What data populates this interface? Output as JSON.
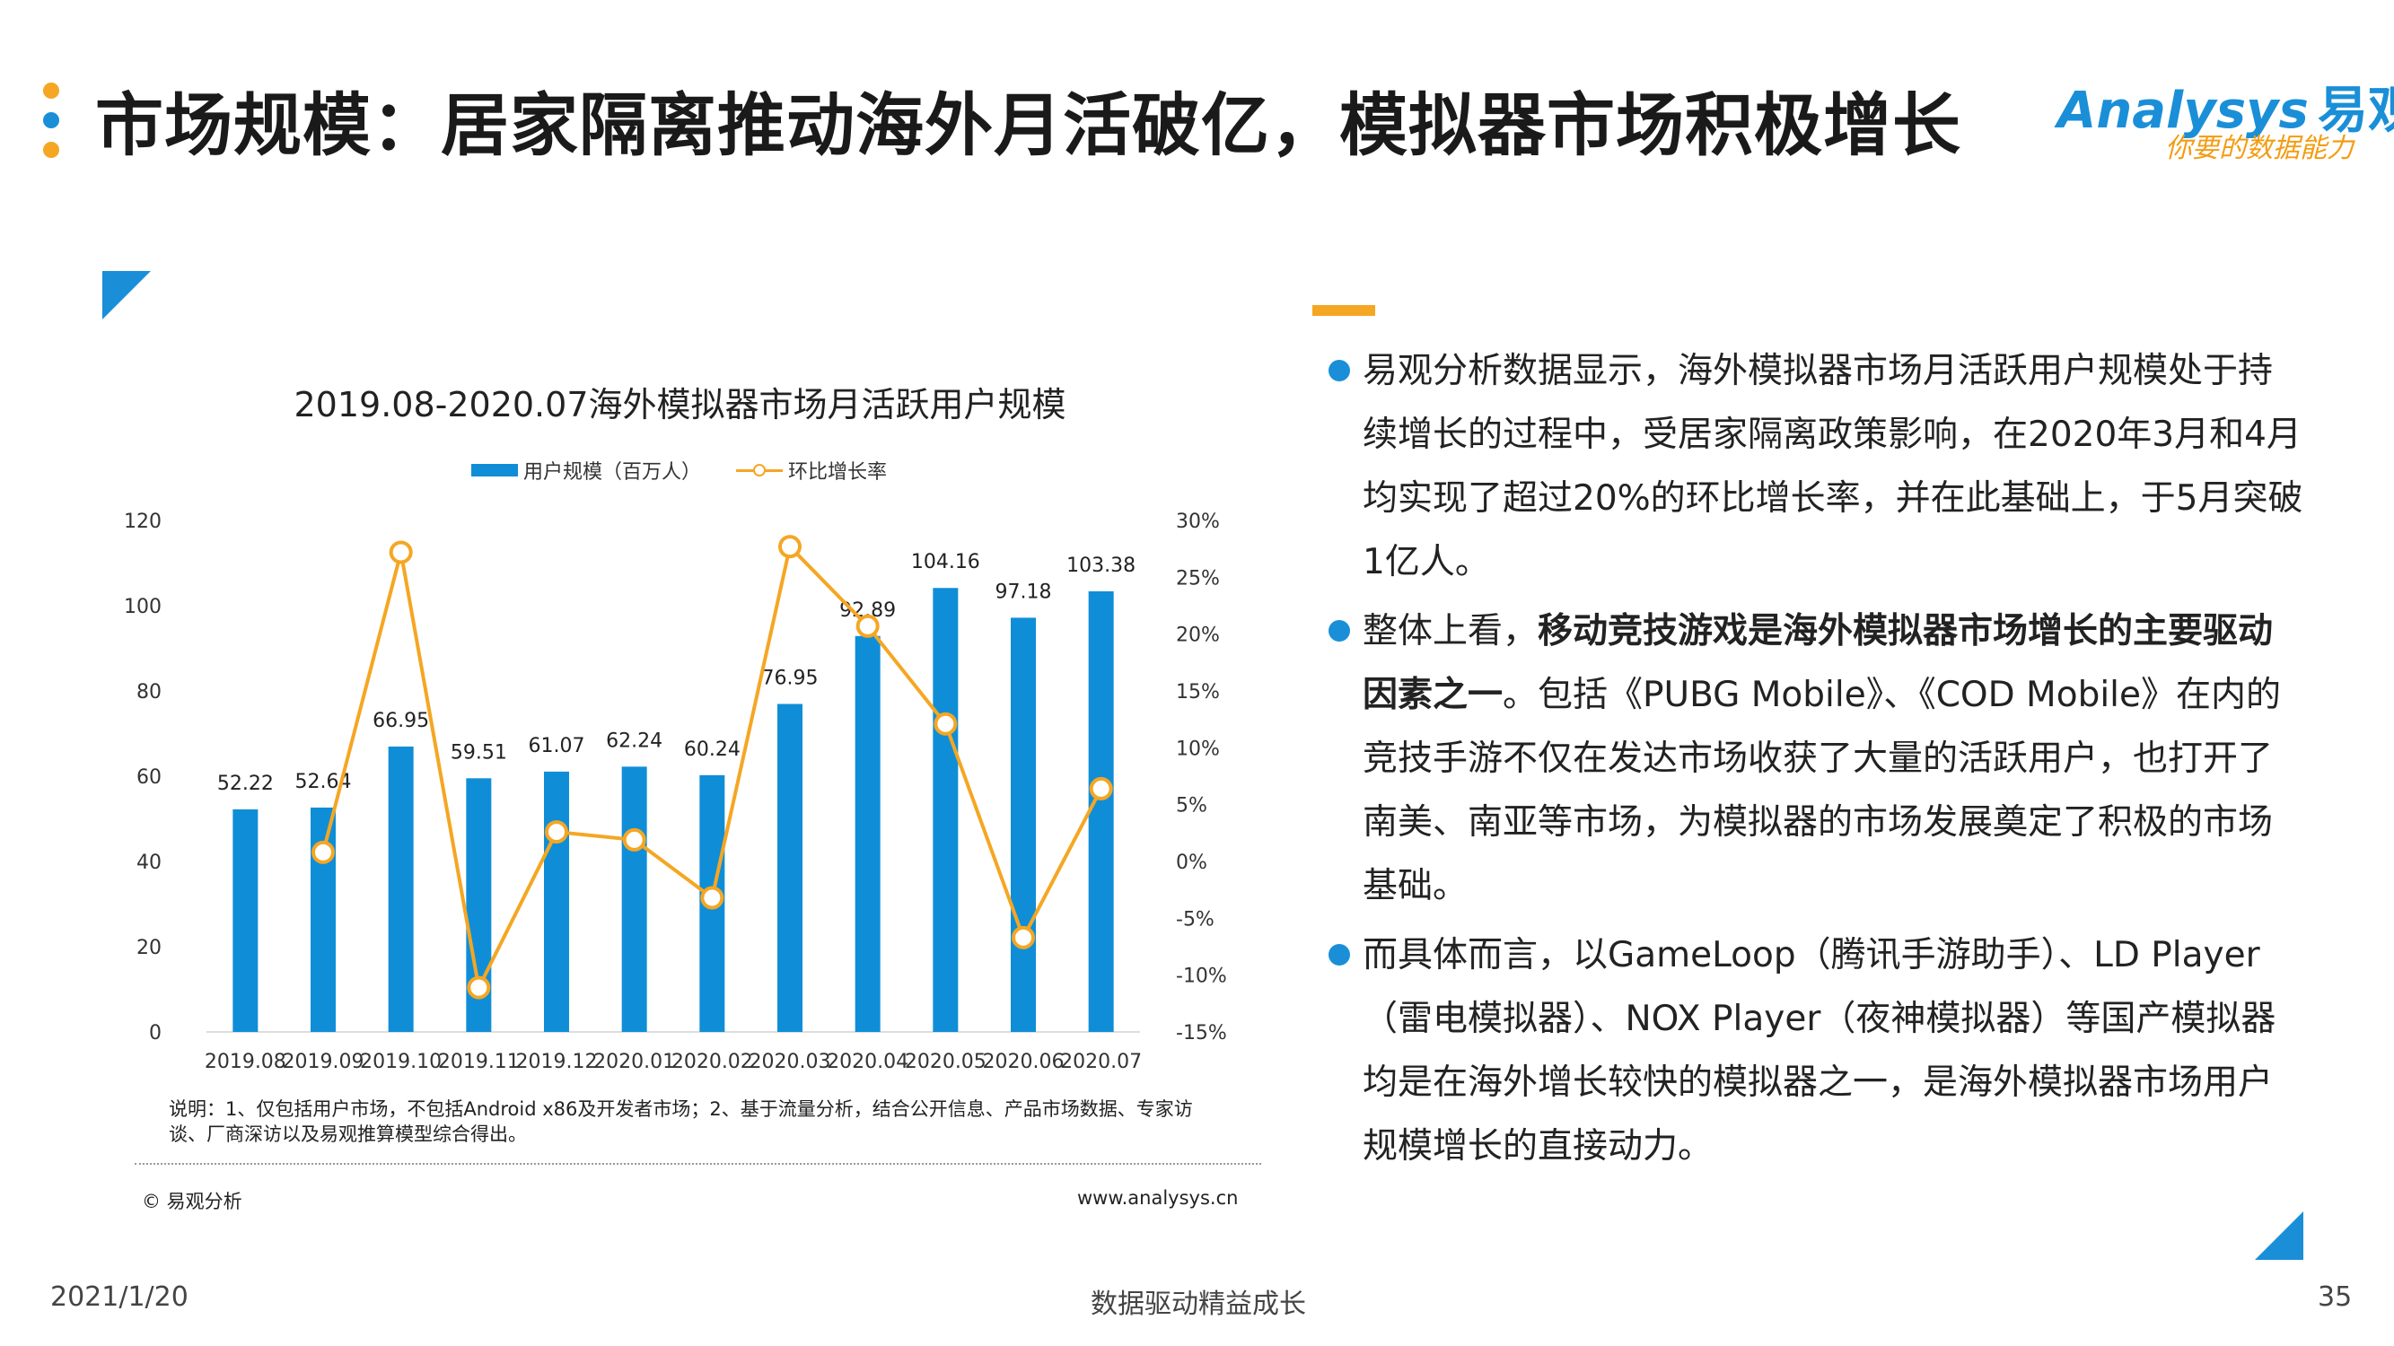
{
  "header": {
    "title": "市场规模：居家隔离推动海外月活破亿，模拟器市场积极增长",
    "dot_colors": [
      "#f5a623",
      "#1a8fd8",
      "#f5a623"
    ],
    "logo_text": "Analysys",
    "logo_cn": "易观",
    "logo_tagline": "你要的数据能力"
  },
  "chart_data": {
    "type": "bar",
    "title": "2019.08-2020.07海外模拟器市场月活跃用户规模",
    "categories": [
      "2019.08",
      "2019.09",
      "2019.10",
      "2019.11",
      "2019.12",
      "2020.01",
      "2020.02",
      "2020.03",
      "2020.04",
      "2020.05",
      "2020.06",
      "2020.07"
    ],
    "series": [
      {
        "name": "用户规模（百万人）",
        "type": "bar",
        "axis": "left",
        "color": "#0f8ed7",
        "values": [
          52.22,
          52.64,
          66.95,
          59.51,
          61.07,
          62.24,
          60.24,
          76.95,
          92.89,
          104.16,
          97.18,
          103.38
        ],
        "labels": [
          "52.22",
          "52.64",
          "66.95",
          "59.51",
          "61.07",
          "62.24",
          "60.24",
          "76.95",
          "92.89",
          "104.16",
          "97.18",
          "103.38"
        ]
      },
      {
        "name": "环比增长率",
        "type": "line",
        "axis": "right",
        "color": "#f5a623",
        "values": [
          null,
          0.8,
          27.2,
          -11.1,
          2.6,
          1.9,
          -3.2,
          27.7,
          20.7,
          12.1,
          -6.7,
          6.4
        ]
      }
    ],
    "y_left": {
      "min": 0,
      "max": 120,
      "ticks": [
        "0",
        "20",
        "40",
        "60",
        "80",
        "100",
        "120"
      ]
    },
    "y_right": {
      "min": -15,
      "max": 30,
      "ticks": [
        "-15%",
        "-10%",
        "-5%",
        "0%",
        "5%",
        "10%",
        "15%",
        "20%",
        "25%",
        "30%"
      ]
    },
    "grid": false,
    "legend": "top"
  },
  "chart_note": "说明：1、仅包括用户市场，不包括Android x86及开发者市场；2、基于流量分析，结合公开信息、产品市场数据、专家访谈、厂商深访以及易观推算模型综合得出。",
  "source_left": "© 易观分析",
  "source_right": "www.analysys.cn",
  "bullets": [
    {
      "text": "易观分析数据显示，海外模拟器市场月活跃用户规模处于持续增长的过程中，受居家隔离政策影响，在2020年3月和4月均实现了超过20%的环比增长率，并在此基础上，于5月突破1亿人。"
    },
    {
      "text_before": "整体上看，",
      "text_bold": "移动竞技游戏是海外模拟器市场增长的主要驱动因素之一",
      "text_after": "。包括《PUBG Mobile》、《COD Mobile》在内的竞技手游不仅在发达市场收获了大量的活跃用户，也打开了南美、南亚等市场，为模拟器的市场发展奠定了积极的市场基础。"
    },
    {
      "text": "而具体而言，以GameLoop（腾讯手游助手）、LD Player（雷电模拟器）、NOX Player（夜神模拟器）等国产模拟器均是在海外增长较快的模拟器之一，是海外模拟器市场用户规模增长的直接动力。"
    }
  ],
  "footer": {
    "date": "2021/1/20",
    "slogan": "数据驱动精益成长",
    "page": "35"
  }
}
